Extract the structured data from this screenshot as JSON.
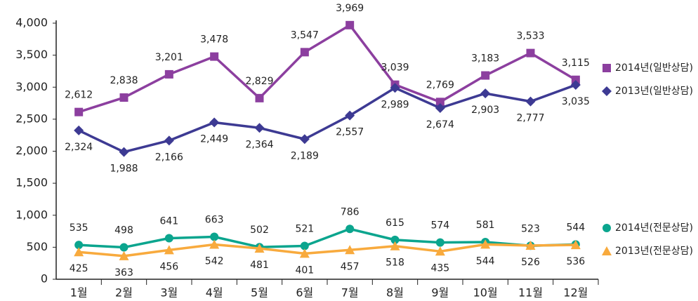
{
  "chart_data": {
    "type": "line",
    "categories": [
      "1월",
      "2월",
      "3월",
      "4월",
      "5월",
      "6월",
      "7월",
      "8월",
      "9월",
      "10월",
      "11월",
      "12월"
    ],
    "ylim": [
      0,
      4000
    ],
    "yticks": [
      0,
      500,
      {
        "value": 1000,
        "label": "1,000"
      },
      {
        "value": 1500,
        "label": "1,500"
      },
      {
        "value": 2000,
        "label": "2,000"
      },
      {
        "value": 2500,
        "label": "2,500"
      },
      {
        "value": 3000,
        "label": "3,000"
      },
      {
        "value": 3500,
        "label": "3,500"
      },
      {
        "value": 4000,
        "label": "4,000"
      }
    ],
    "series": [
      {
        "name": "2014년(일반상담)",
        "color": "#8c3f9f",
        "marker": "square",
        "label_position": "above",
        "values": [
          2612,
          2838,
          3201,
          3478,
          2829,
          3547,
          3969,
          3039,
          2769,
          3183,
          3533,
          3115
        ],
        "value_labels": [
          "2,612",
          "2,838",
          "3,201",
          "3,478",
          "2,829",
          "3,547",
          "3,969",
          "3,039",
          "2,769",
          "3,183",
          "3,533",
          "3,115"
        ]
      },
      {
        "name": "2013년(일반상담)",
        "color": "#3d3a93",
        "marker": "diamond",
        "label_position": "below",
        "values": [
          2324,
          1988,
          2166,
          2449,
          2364,
          2189,
          2557,
          2989,
          2674,
          2903,
          2777,
          3035
        ],
        "value_labels": [
          "2,324",
          "1,988",
          "2,166",
          "2,449",
          "2,364",
          "2,189",
          "2,557",
          "2,989",
          "2,674",
          "2,903",
          "2,777",
          "3,035"
        ]
      },
      {
        "name": "2014년(전문상담)",
        "color": "#0ba58e",
        "marker": "circle",
        "label_position": "above",
        "values": [
          535,
          498,
          641,
          663,
          502,
          521,
          786,
          615,
          574,
          581,
          523,
          544
        ]
      },
      {
        "name": "2013년(전문상담)",
        "color": "#f8aa3d",
        "marker": "triangle",
        "label_position": "below",
        "values": [
          425,
          363,
          456,
          542,
          481,
          401,
          457,
          518,
          435,
          544,
          526,
          536
        ]
      }
    ]
  }
}
